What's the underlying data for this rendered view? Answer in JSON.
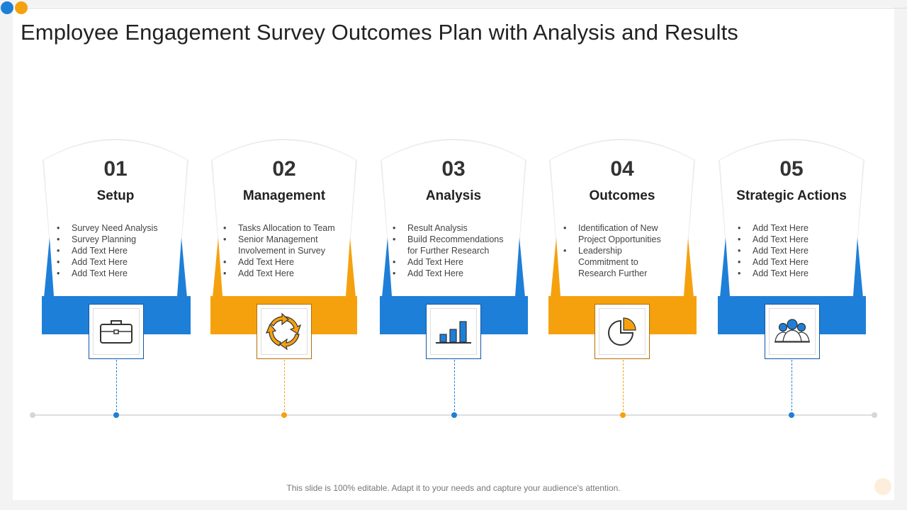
{
  "title": "Employee Engagement Survey Outcomes Plan with Analysis and Results",
  "colors": {
    "blue": "#1e7fd8",
    "orange": "#f5a10e",
    "dark_blue": "#0f56a8",
    "dark_orange": "#b86e00"
  },
  "steps": [
    {
      "number": "01",
      "heading": "Setup",
      "icon": "briefcase-icon",
      "color": "blue",
      "bullets": [
        "Survey  Need Analysis",
        "Survey  Planning",
        "Add Text Here",
        "Add Text Here",
        "Add Text Here"
      ]
    },
    {
      "number": "02",
      "heading": "Management",
      "icon": "refresh-cycle-icon",
      "color": "orange",
      "bullets": [
        "Tasks Allocation to Team",
        "Senior Management",
        "Involvement  in Survey",
        "Add Text Here",
        "Add Text Here"
      ]
    },
    {
      "number": "03",
      "heading": "Analysis",
      "icon": "bar-chart-icon",
      "color": "blue",
      "bullets": [
        "Result Analysis",
        "Build Recommendations",
        "for Further Research",
        "Add Text Here",
        "Add Text Here"
      ]
    },
    {
      "number": "04",
      "heading": "Outcomes",
      "icon": "pie-chart-icon",
      "color": "orange",
      "bullets": [
        "Identification  of New",
        "Project Opportunities",
        "Leadership",
        "Commitment to",
        "Research Further"
      ]
    },
    {
      "number": "05",
      "heading": "Strategic Actions",
      "icon": "team-icon",
      "color": "blue",
      "bullets": [
        "Add Text Here",
        "Add Text Here",
        "Add Text Here",
        "Add Text Here",
        "Add Text Here"
      ]
    }
  ],
  "footer": "This slide is 100% editable. Adapt it to your needs and capture your audience's attention."
}
